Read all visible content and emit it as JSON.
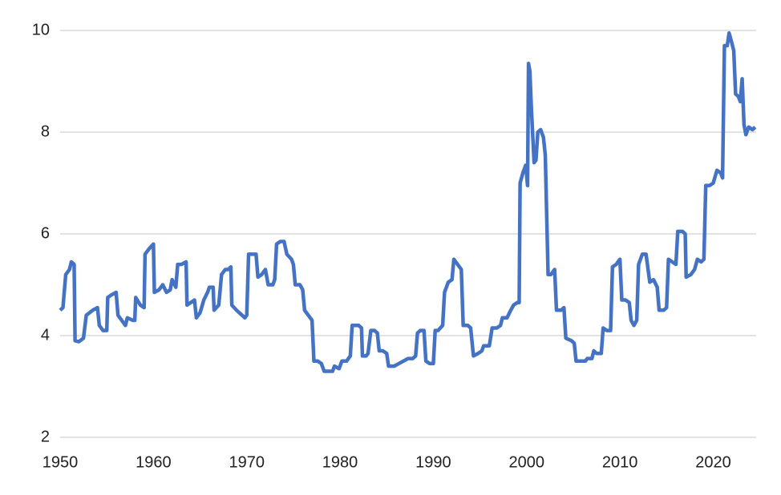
{
  "chart_data": {
    "type": "line",
    "x": [
      1950,
      1950.3,
      1950.6,
      1951,
      1951.2,
      1951.5,
      1951.6,
      1952,
      1952.5,
      1952.8,
      1953.5,
      1954,
      1954.2,
      1954.6,
      1955,
      1955.1,
      1955.5,
      1956,
      1956.2,
      1956.6,
      1957,
      1957.2,
      1957.8,
      1958,
      1958.1,
      1958.6,
      1959,
      1959.1,
      1959.5,
      1960,
      1960.1,
      1960.6,
      1961,
      1961.4,
      1961.8,
      1962,
      1962.4,
      1962.6,
      1963,
      1963.5,
      1963.6,
      1964,
      1964.4,
      1964.6,
      1965,
      1965.4,
      1965.8,
      1966,
      1966.4,
      1966.5,
      1967,
      1967.3,
      1967.7,
      1968,
      1968.3,
      1968.4,
      1968.9,
      1969.2,
      1969.5,
      1969.8,
      1970,
      1970.2,
      1970.6,
      1971,
      1971.2,
      1971.6,
      1972,
      1972.3,
      1972.8,
      1973,
      1973.2,
      1973.6,
      1974,
      1974.3,
      1974.8,
      1975,
      1975.2,
      1975.7,
      1976,
      1976.2,
      1976.6,
      1977,
      1977.2,
      1977.6,
      1978,
      1978.3,
      1978.8,
      1979.2,
      1979.4,
      1979.9,
      1980.2,
      1980.7,
      1981.1,
      1981.3,
      1981.7,
      1982,
      1982.3,
      1982.4,
      1982.8,
      1983,
      1983.3,
      1983.7,
      1984,
      1984.2,
      1984.6,
      1985,
      1985.2,
      1985.8,
      1986.3,
      1986.8,
      1987.3,
      1987.8,
      1988.1,
      1988.3,
      1988.6,
      1989,
      1989.2,
      1989.6,
      1990,
      1990.2,
      1990.5,
      1991,
      1991.2,
      1991.6,
      1992,
      1992.2,
      1992.6,
      1993,
      1993.2,
      1993.7,
      1994,
      1994.3,
      1994.8,
      1995.2,
      1995.4,
      1996,
      1996.3,
      1996.8,
      1997.2,
      1997.4,
      1997.9,
      1998.3,
      1998.6,
      1999,
      1999.2,
      1999.3,
      1999.6,
      1999.9,
      2000.1,
      2000.2,
      2000.35,
      2000.5,
      2000.8,
      2001,
      2001.2,
      2001.5,
      2001.8,
      2002,
      2002.3,
      2002.6,
      2003,
      2003.2,
      2003.7,
      2004,
      2004.2,
      2004.8,
      2005.1,
      2005.3,
      2005.8,
      2006.3,
      2006.5,
      2007,
      2007.2,
      2007.5,
      2008,
      2008.2,
      2008.6,
      2009,
      2009.2,
      2009.6,
      2010,
      2010.2,
      2010.6,
      2011,
      2011.2,
      2011.5,
      2011.8,
      2012,
      2012.4,
      2012.8,
      2013.2,
      2013.6,
      2014,
      2014.2,
      2014.7,
      2015,
      2015.2,
      2015.6,
      2016,
      2016.2,
      2016.7,
      2017,
      2017.1,
      2017.6,
      2018,
      2018.3,
      2018.7,
      2019,
      2019.2,
      2019.6,
      2020,
      2020.4,
      2020.8,
      2021,
      2021.2,
      2021.5,
      2021.7,
      2022,
      2022.2,
      2022.4,
      2022.7,
      2022.9,
      2023.1,
      2023.3,
      2023.5,
      2023.8,
      2024.2,
      2024.5
    ],
    "series": [
      {
        "color": "#4472c4",
        "values": [
          4.5,
          4.55,
          5.2,
          5.3,
          5.45,
          5.4,
          3.9,
          3.88,
          3.95,
          4.4,
          4.5,
          4.55,
          4.2,
          4.1,
          4.1,
          4.75,
          4.8,
          4.85,
          4.4,
          4.3,
          4.2,
          4.35,
          4.3,
          4.3,
          4.75,
          4.6,
          4.55,
          5.6,
          5.7,
          5.8,
          4.85,
          4.9,
          5.0,
          4.85,
          4.9,
          5.1,
          4.95,
          5.4,
          5.4,
          5.45,
          4.6,
          4.65,
          4.7,
          4.35,
          4.45,
          4.7,
          4.85,
          4.95,
          4.95,
          4.5,
          4.6,
          5.2,
          5.3,
          5.3,
          5.35,
          4.6,
          4.5,
          4.45,
          4.4,
          4.35,
          4.4,
          5.6,
          5.6,
          5.6,
          5.15,
          5.2,
          5.3,
          5.0,
          5.0,
          5.1,
          5.8,
          5.85,
          5.85,
          5.6,
          5.5,
          5.4,
          5.0,
          5.0,
          4.9,
          4.5,
          4.4,
          4.3,
          3.5,
          3.5,
          3.45,
          3.3,
          3.3,
          3.3,
          3.4,
          3.35,
          3.5,
          3.5,
          3.6,
          4.2,
          4.2,
          4.2,
          4.15,
          3.6,
          3.6,
          3.65,
          4.1,
          4.1,
          4.05,
          3.7,
          3.7,
          3.65,
          3.4,
          3.4,
          3.45,
          3.5,
          3.55,
          3.55,
          3.6,
          4.05,
          4.1,
          4.1,
          3.5,
          3.45,
          3.45,
          4.1,
          4.1,
          4.2,
          4.85,
          5.05,
          5.1,
          5.5,
          5.4,
          5.3,
          4.2,
          4.2,
          4.15,
          3.6,
          3.65,
          3.7,
          3.8,
          3.8,
          4.15,
          4.15,
          4.2,
          4.35,
          4.35,
          4.5,
          4.6,
          4.65,
          4.65,
          7.0,
          7.2,
          7.35,
          6.95,
          9.35,
          9.2,
          8.5,
          7.4,
          7.45,
          8.0,
          8.05,
          7.9,
          7.55,
          5.2,
          5.2,
          5.3,
          4.5,
          4.5,
          4.55,
          3.95,
          3.9,
          3.85,
          3.5,
          3.5,
          3.5,
          3.55,
          3.55,
          3.7,
          3.65,
          3.65,
          4.15,
          4.1,
          4.1,
          5.35,
          5.4,
          5.5,
          4.7,
          4.7,
          4.65,
          4.3,
          4.2,
          4.3,
          5.4,
          5.6,
          5.6,
          5.05,
          5.1,
          4.95,
          4.5,
          4.5,
          4.55,
          5.5,
          5.45,
          5.4,
          6.05,
          6.05,
          6.0,
          5.15,
          5.2,
          5.3,
          5.5,
          5.45,
          5.5,
          6.95,
          6.95,
          7.0,
          7.25,
          7.2,
          7.1,
          9.7,
          9.7,
          9.95,
          9.75,
          9.6,
          8.75,
          8.7,
          8.6,
          9.05,
          8.15,
          7.95,
          8.1,
          8.05,
          8.1
        ]
      }
    ],
    "xlim": [
      1950,
      2024.6
    ],
    "xticks": [
      1950,
      1960,
      1970,
      1980,
      1990,
      2000,
      2010,
      2020
    ],
    "ylim": [
      2,
      10
    ],
    "yticks": [
      2,
      4,
      6,
      8,
      10
    ],
    "grid": true
  }
}
